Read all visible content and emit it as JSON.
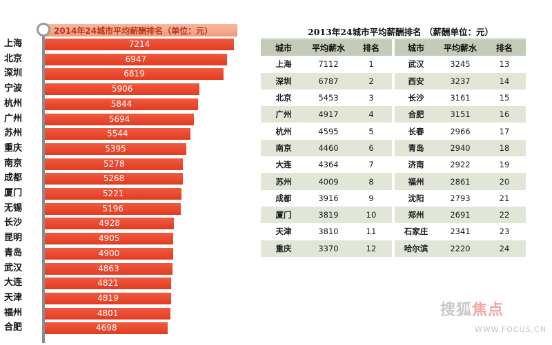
{
  "left_chart": {
    "title": "2014年24城市平均薪酬排名（单位：元）"
  },
  "right_table": {
    "title": "2013年24城市平均薪酬排名 （薪酬单位：元）",
    "headers": [
      "城市",
      "平均薪水",
      "排名",
      "城市",
      "平均薪水",
      "排名"
    ],
    "rows": [
      [
        "上海",
        "7112",
        "1",
        "武汉",
        "3245",
        "13"
      ],
      [
        "深圳",
        "6787",
        "2",
        "西安",
        "3237",
        "14"
      ],
      [
        "北京",
        "5453",
        "3",
        "长沙",
        "3161",
        "15"
      ],
      [
        "广州",
        "4917",
        "4",
        "合肥",
        "3151",
        "16"
      ],
      [
        "杭州",
        "4595",
        "5",
        "长春",
        "2966",
        "17"
      ],
      [
        "南京",
        "4460",
        "6",
        "青岛",
        "2940",
        "18"
      ],
      [
        "大连",
        "4364",
        "7",
        "济南",
        "2922",
        "19"
      ],
      [
        "苏州",
        "4009",
        "8",
        "福州",
        "2861",
        "20"
      ],
      [
        "成都",
        "3916",
        "9",
        "沈阳",
        "2793",
        "21"
      ],
      [
        "厦门",
        "3819",
        "10",
        "郑州",
        "2691",
        "22"
      ],
      [
        "天津",
        "3810",
        "11",
        "石家庄",
        "2341",
        "23"
      ],
      [
        "重庆",
        "3370",
        "12",
        "哈尔滨",
        "2220",
        "24"
      ]
    ]
  },
  "watermark": {
    "logo_left": "搜狐",
    "logo_right": "焦点",
    "url": "WWW.FOCUS.CN"
  },
  "chart_data": [
    {
      "type": "bar",
      "orientation": "horizontal",
      "title": "2014年24城市平均薪酬排名（单位：元）",
      "categories": [
        "上海",
        "北京",
        "深圳",
        "宁波",
        "杭州",
        "广州",
        "苏州",
        "重庆",
        "南京",
        "成都",
        "厦门",
        "无锡",
        "长沙",
        "昆明",
        "青岛",
        "武汉",
        "大连",
        "天津",
        "福州",
        "合肥"
      ],
      "values": [
        7214,
        6947,
        6819,
        5906,
        5844,
        5694,
        5544,
        5395,
        5278,
        5268,
        5221,
        5196,
        4928,
        4905,
        4900,
        4863,
        4821,
        4819,
        4801,
        4698
      ],
      "data_labels": true,
      "colors": {
        "bar": "#e8452b",
        "label": "#ffffff",
        "axis": "#8c8c8c"
      }
    },
    {
      "type": "table",
      "title": "2013年24城市平均薪酬排名 （薪酬单位：元）",
      "columns": [
        "城市",
        "平均薪水",
        "排名"
      ],
      "rows": [
        [
          "上海",
          7112,
          1
        ],
        [
          "深圳",
          6787,
          2
        ],
        [
          "北京",
          5453,
          3
        ],
        [
          "广州",
          4917,
          4
        ],
        [
          "杭州",
          4595,
          5
        ],
        [
          "南京",
          4460,
          6
        ],
        [
          "大连",
          4364,
          7
        ],
        [
          "苏州",
          4009,
          8
        ],
        [
          "成都",
          3916,
          9
        ],
        [
          "厦门",
          3819,
          10
        ],
        [
          "天津",
          3810,
          11
        ],
        [
          "重庆",
          3370,
          12
        ],
        [
          "武汉",
          3245,
          13
        ],
        [
          "西安",
          3237,
          14
        ],
        [
          "长沙",
          3161,
          15
        ],
        [
          "合肥",
          3151,
          16
        ],
        [
          "长春",
          2966,
          17
        ],
        [
          "青岛",
          2940,
          18
        ],
        [
          "济南",
          2922,
          19
        ],
        [
          "福州",
          2861,
          20
        ],
        [
          "沈阳",
          2793,
          21
        ],
        [
          "郑州",
          2691,
          22
        ],
        [
          "石家庄",
          2341,
          23
        ],
        [
          "哈尔滨",
          2220,
          24
        ]
      ],
      "colors": {
        "header": "#c4cbb7",
        "alt_row": "#e1e6d7"
      }
    }
  ]
}
